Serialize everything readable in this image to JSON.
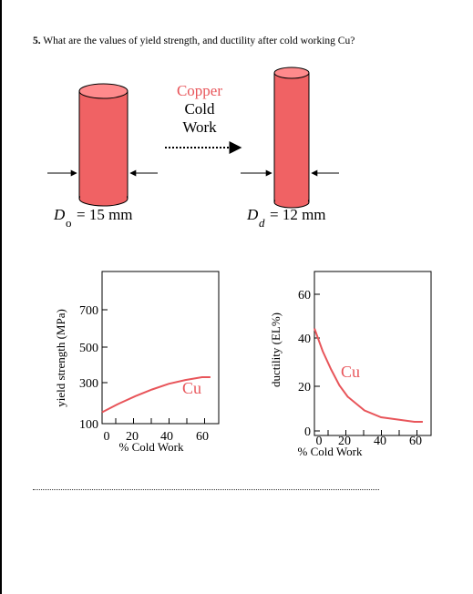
{
  "question": {
    "number": "5.",
    "text": "What are the values of yield strength, and ductility after cold working Cu?"
  },
  "diagram": {
    "process_label_line1": "Copper",
    "process_label_line2": "Cold",
    "process_label_line3": "Work",
    "initial_diameter": {
      "symbol": "D",
      "subscript": "o",
      "value": "= 15 mm"
    },
    "final_diameter": {
      "symbol": "D",
      "subscript": "d",
      "value": "= 12 mm"
    },
    "colors": {
      "cylinder": "#f06264",
      "accent_text": "#e8555a",
      "curve": "#e8555a"
    }
  },
  "chart_data": [
    {
      "type": "line",
      "ylabel": "yield strength (MPa)",
      "xlabel": "% Cold Work",
      "y_ticks": [
        "100",
        "300",
        "500",
        "700"
      ],
      "x_ticks": [
        "0",
        "20",
        "40",
        "60"
      ],
      "xlim": [
        0,
        70
      ],
      "ylim": [
        100,
        800
      ],
      "series": [
        {
          "name": "Cu",
          "x": [
            0,
            10,
            20,
            30,
            40,
            50,
            60,
            65
          ],
          "y": [
            160,
            205,
            245,
            280,
            310,
            330,
            345,
            345
          ]
        }
      ]
    },
    {
      "type": "line",
      "ylabel": "ductility (EL%)",
      "xlabel": "% Cold Work",
      "y_ticks": [
        "0",
        "20",
        "40",
        "60"
      ],
      "x_ticks": [
        "0",
        "20",
        "40",
        "60"
      ],
      "xlim": [
        0,
        70
      ],
      "ylim": [
        0,
        65
      ],
      "series": [
        {
          "name": "Cu",
          "x": [
            0,
            5,
            10,
            15,
            20,
            30,
            40,
            50,
            60,
            65
          ],
          "y": [
            45,
            35,
            27,
            20,
            15,
            9,
            6,
            5,
            4,
            4
          ]
        }
      ]
    }
  ]
}
